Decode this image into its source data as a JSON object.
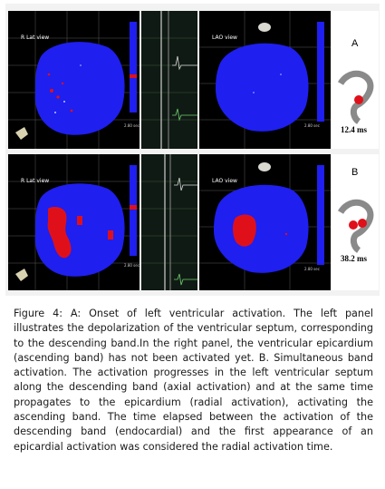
{
  "figure": {
    "panels": [
      {
        "id": "top-left",
        "view_label": "R Lat view"
      },
      {
        "id": "top-right",
        "view_label": "LAO view"
      },
      {
        "id": "bottom-left",
        "view_label": "R Lat view"
      },
      {
        "id": "bottom-right",
        "view_label": "LAO view"
      }
    ],
    "row_a": {
      "letter": "A",
      "time": "12.4 ms"
    },
    "row_b": {
      "letter": "B",
      "time": "38.2 ms"
    }
  },
  "caption": {
    "label": "Figure 4:",
    "text": " A: Onset of left ventricular activation. The left panel illustrates the depolarization of the ventricular septum, corresponding to the descending band.In the right panel, the ventricular epicardium (ascending band) has not been activated yet. B. Simultaneous band activation. The activation progresses in the left ventricular septum along the descending band (axial activation) and at the same time propagates to the epicardium (radial activation), activating the ascending band. The time elapsed between the activation of the descending band (endocardial) and the first appearance of an epicardial activation was considered the radial activation time."
  },
  "colors": {
    "heart_blue": "#1f1ff0",
    "activation_red": "#e0101a",
    "panel_black": "#000000"
  }
}
